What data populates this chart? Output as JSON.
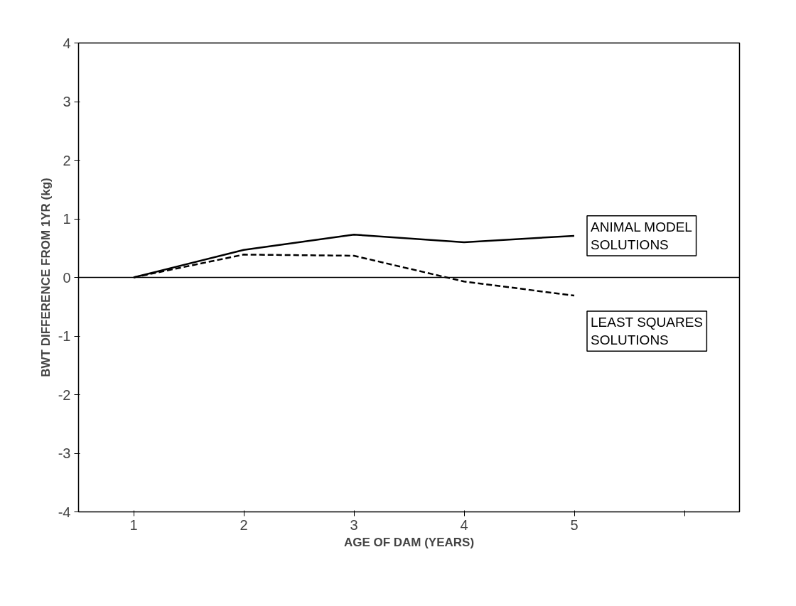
{
  "chart_data": {
    "type": "line",
    "xlabel": "AGE OF DAM (YEARS)",
    "ylabel": "BWT DIFFERENCE FROM 1YR (kg)",
    "x": [
      1,
      2,
      3,
      4,
      5
    ],
    "series": [
      {
        "name": "ANIMAL MODEL\nSOLUTIONS",
        "color": "#000000",
        "line_style": "solid",
        "values": [
          0,
          0.47,
          0.73,
          0.6,
          0.71
        ]
      },
      {
        "name": "LEAST SQUARES\n SOLUTIONS",
        "color": "#000000",
        "line_style": "dashed",
        "values": [
          0,
          0.39,
          0.37,
          -0.07,
          -0.31
        ]
      }
    ],
    "xlim": [
      0.5,
      6.5
    ],
    "xticks": [
      1,
      2,
      3,
      4,
      5,
      {
        "value": 6,
        "label": null
      }
    ],
    "ylim": [
      -4,
      4
    ],
    "yticks": [
      -4,
      -3,
      -2,
      -1,
      0,
      1,
      2,
      3,
      4
    ],
    "ref_lines": [
      {
        "axis": "y",
        "value": 0,
        "label": null,
        "color": "#000000"
      }
    ],
    "grid": false,
    "marker": "none"
  }
}
